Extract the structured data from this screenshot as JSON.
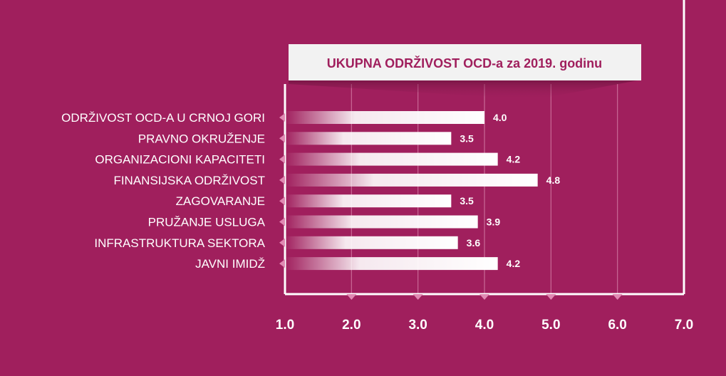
{
  "chart_data": {
    "type": "bar",
    "orientation": "horizontal",
    "title": "UKUPNA ODRŽIVOST OCD-a za 2019. godinu",
    "categories": [
      "ODRŽIVOST OCD-A U CRNOJ GORI",
      "PRAVNO OKRUŽENJE",
      "ORGANIZACIONI KAPACITETI",
      "FINANSIJSKA ODRŽIVOST",
      "ZAGOVARANJE",
      "PRUŽANJE USLUGA",
      "INFRASTRUKTURA SEKTORA",
      "JAVNI IMIDŽ"
    ],
    "values": [
      4.0,
      3.5,
      4.2,
      4.8,
      3.5,
      3.9,
      3.6,
      4.2
    ],
    "value_labels": [
      "4.0",
      "3.5",
      "4.2",
      "4.8",
      "3.5",
      "3.9",
      "3.6",
      "4.2"
    ],
    "xlim": [
      1.0,
      7.0
    ],
    "xticks": [
      "1.0",
      "2.0",
      "3.0",
      "4.0",
      "5.0",
      "6.0",
      "7.0"
    ],
    "grid": true,
    "colors": {
      "background": "#a01f5d",
      "bar": "#ffffff",
      "text": "#ffffff",
      "title_text": "#a01f5d",
      "title_box": "#f2f2f2"
    }
  }
}
